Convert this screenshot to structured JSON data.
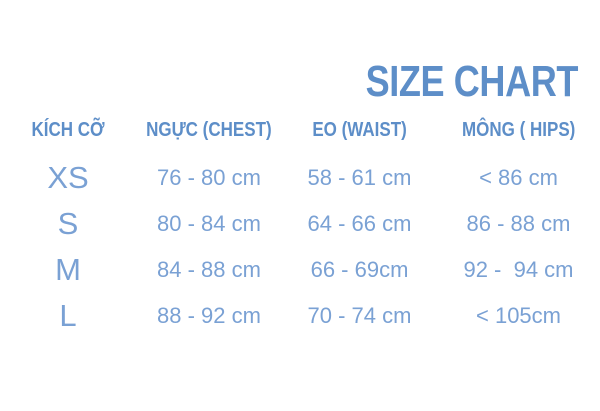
{
  "title": "SIZE CHART",
  "colors": {
    "title": "#5d8ec8",
    "header": "#5d8ec8",
    "data": "#7aa1d4",
    "background": "#ffffff"
  },
  "chart_data": {
    "type": "table",
    "title": "SIZE CHART",
    "columns": [
      "KÍCH CỠ",
      "NGỰC (CHEST)",
      "EO (WAIST)",
      "MÔNG ( HIPS)"
    ],
    "rows": [
      {
        "size": "XS",
        "chest": "76 - 80 cm",
        "waist": "58 - 61 cm",
        "hips": "< 86 cm"
      },
      {
        "size": "S",
        "chest": "80 - 84 cm",
        "waist": "64 - 66 cm",
        "hips": "86 - 88 cm"
      },
      {
        "size": "M",
        "chest": "84 - 88 cm",
        "waist": "66 - 69cm",
        "hips": "92 -  94 cm"
      },
      {
        "size": "L",
        "chest": "88 - 92 cm",
        "waist": "70 - 74 cm",
        "hips": "< 105cm"
      }
    ]
  }
}
